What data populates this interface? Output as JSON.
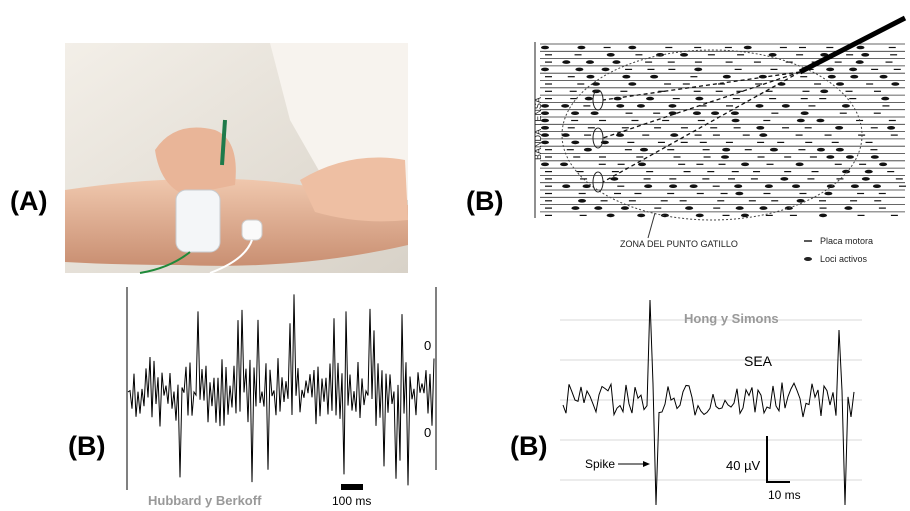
{
  "panels": [
    {
      "label": "(A)"
    },
    {
      "label": "(B)",
      "vertical_label": "BANDA TENSA",
      "caption": "ZONA DEL PUNTO GATILLO",
      "legend": [
        "Placa motora",
        "Loci activos"
      ]
    },
    {
      "label": "(B)",
      "axis_marks": [
        "0",
        "0"
      ],
      "credit": "Hubbard y Berkoff",
      "scale": "100 ms"
    },
    {
      "label": "(B)",
      "credit": "Hong y Simons",
      "signal": "SEA",
      "marker": "Spike",
      "scale_y": "40 µV",
      "scale_x": "10 ms"
    }
  ]
}
